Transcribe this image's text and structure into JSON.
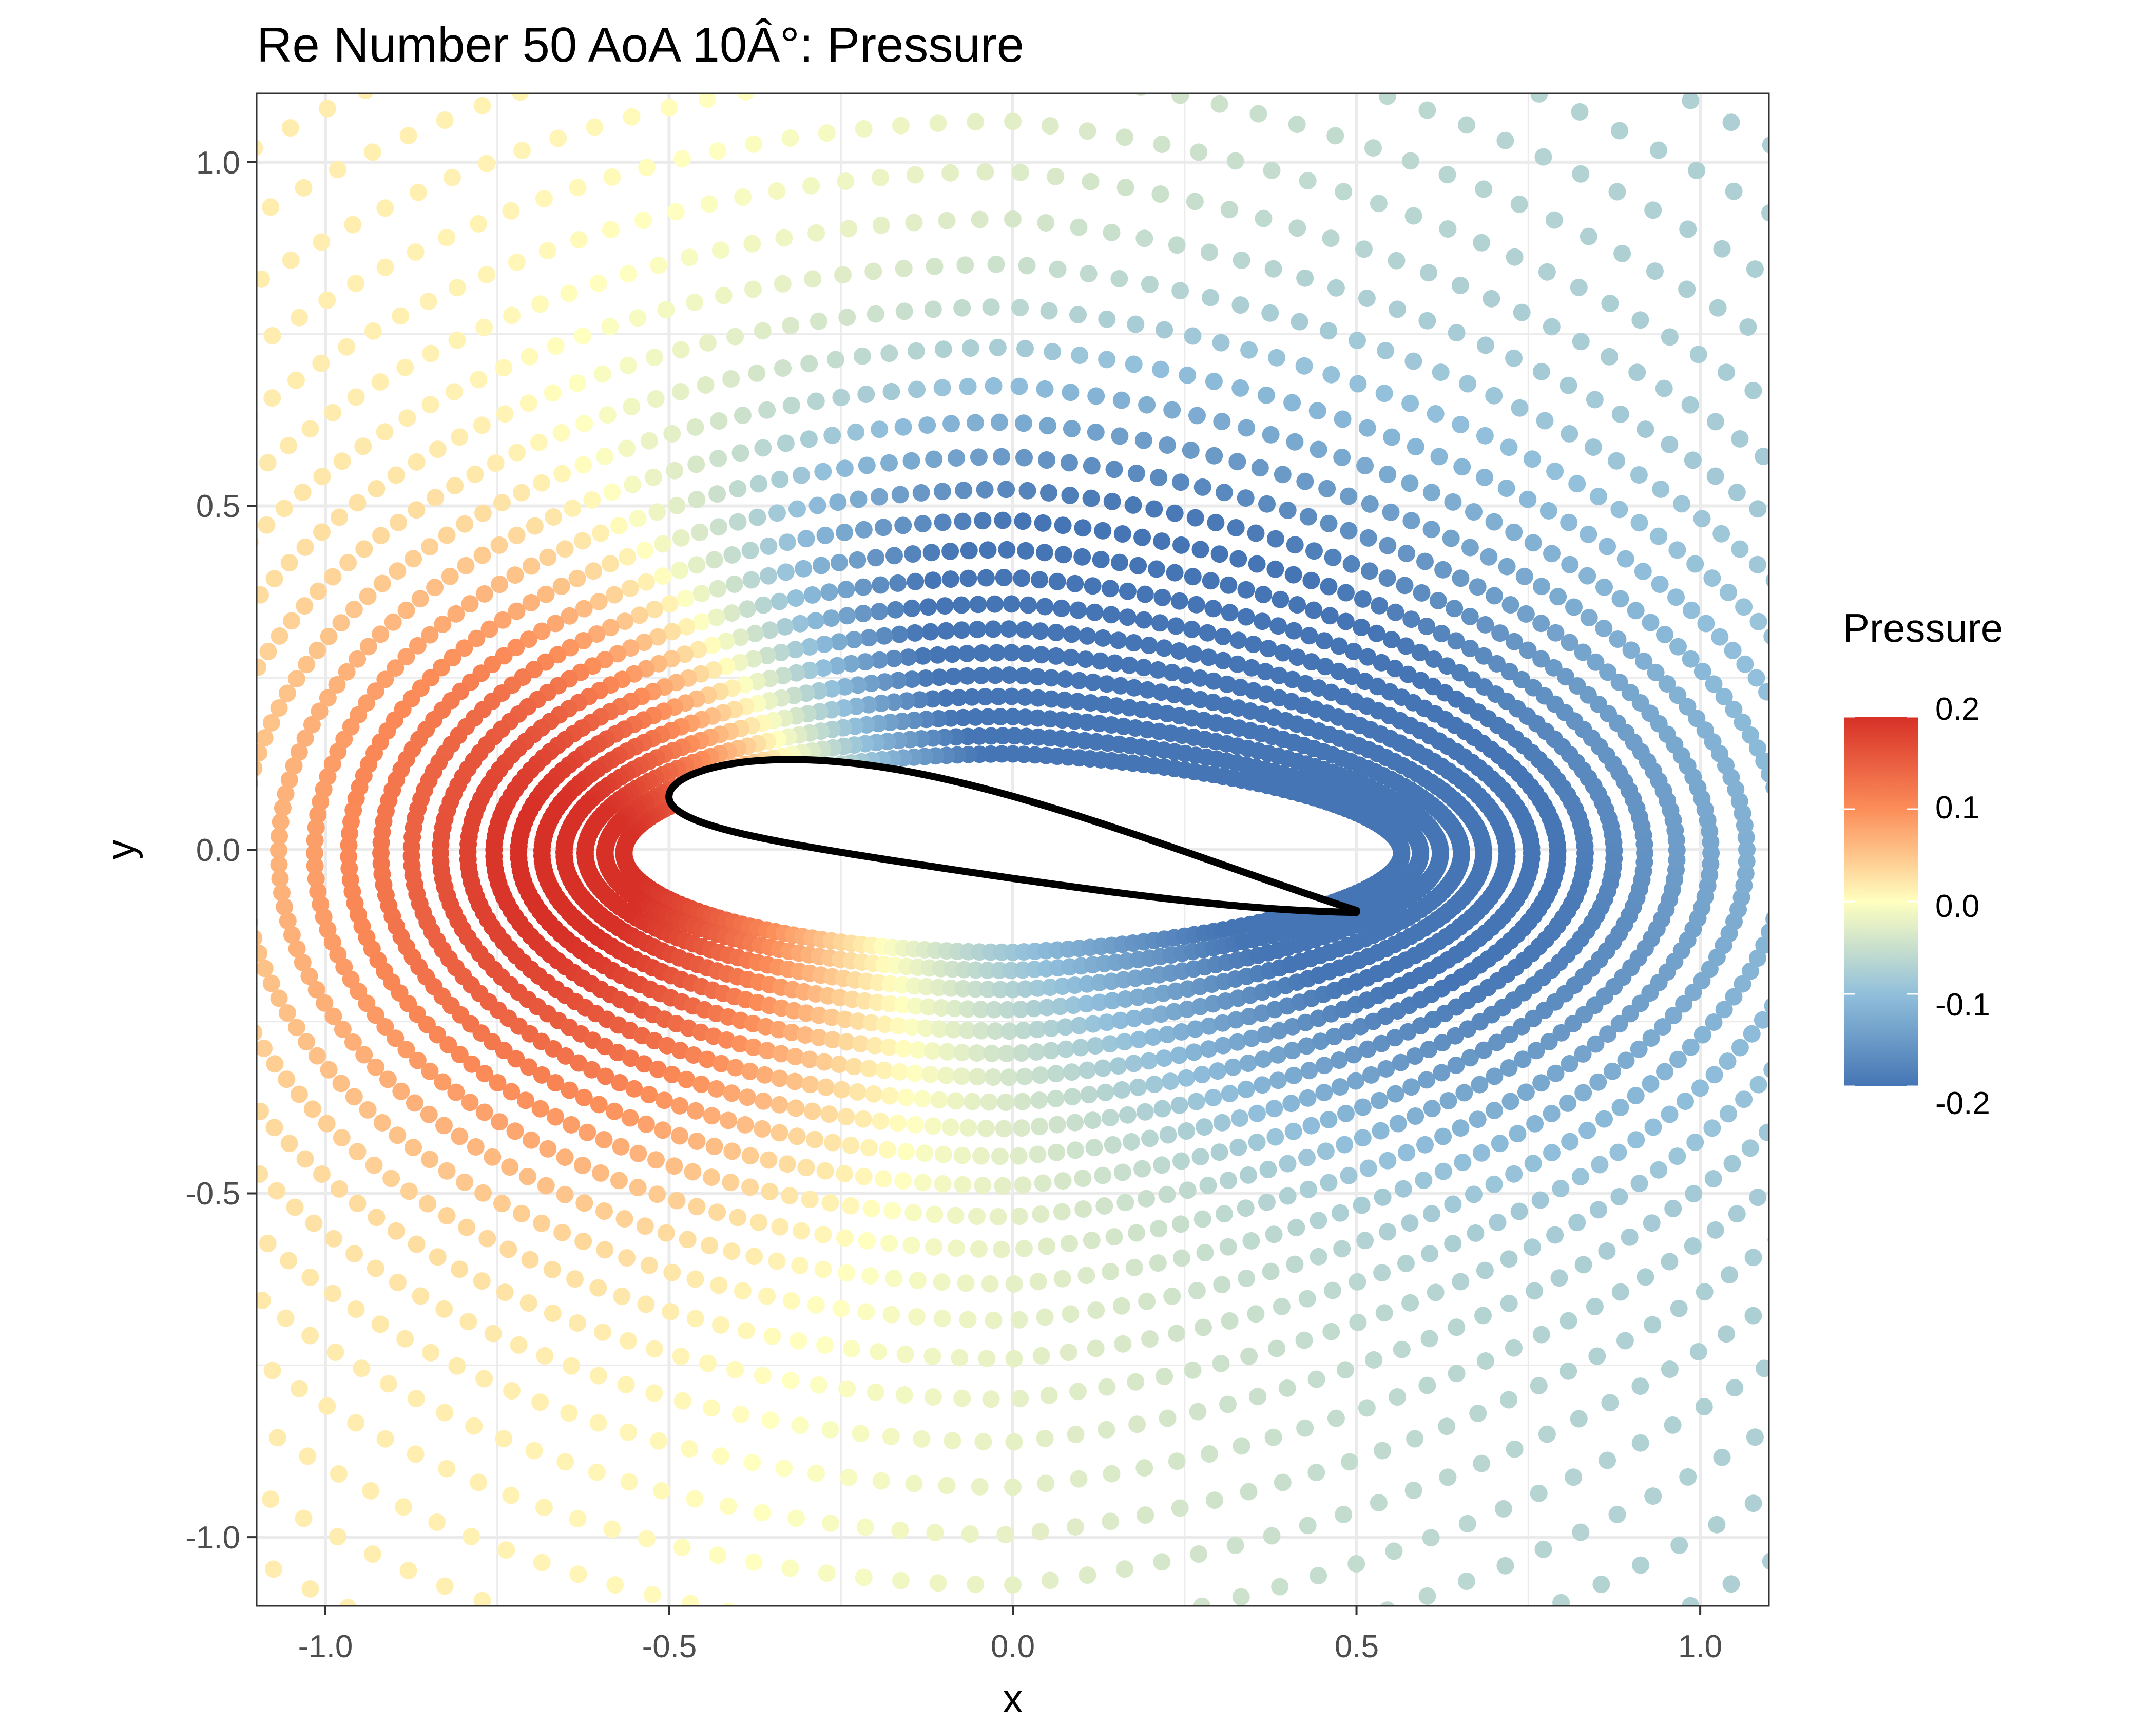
{
  "chart_data": {
    "type": "scatter",
    "title": "Re Number 50 AoA 10Â°: Pressure",
    "xlabel": "x",
    "ylabel": "y",
    "xlim": [
      -1.1,
      1.1
    ],
    "ylim": [
      -1.1,
      1.1
    ],
    "x_ticks": [
      "-1.0",
      "-0.5",
      "0.0",
      "0.5",
      "1.0"
    ],
    "y_ticks": [
      "-1.0",
      "-0.5",
      "0.0",
      "0.5",
      "1.0"
    ],
    "grid": true,
    "legend": {
      "title": "Pressure",
      "placement": "right",
      "ticks": [
        "0.2",
        "0.1",
        "0.0",
        "-0.1",
        "-0.2"
      ],
      "range": [
        -0.2,
        0.2
      ],
      "colors": [
        "#4575b4",
        "#91bfdb",
        "#ffffbf",
        "#fc8d59",
        "#d73027"
      ]
    },
    "field": {
      "description_values": "pressure sampled on concentric mesh rings around an airfoil at 10 degrees angle of attack",
      "airfoil_leading_edge": [
        -0.5,
        0.08
      ],
      "airfoil_trailing_edge": [
        0.5,
        -0.09
      ],
      "pressure_min": -0.2,
      "pressure_max": 0.2,
      "stagnation_pressure": 0.2,
      "suction_pressure": -0.2
    }
  }
}
